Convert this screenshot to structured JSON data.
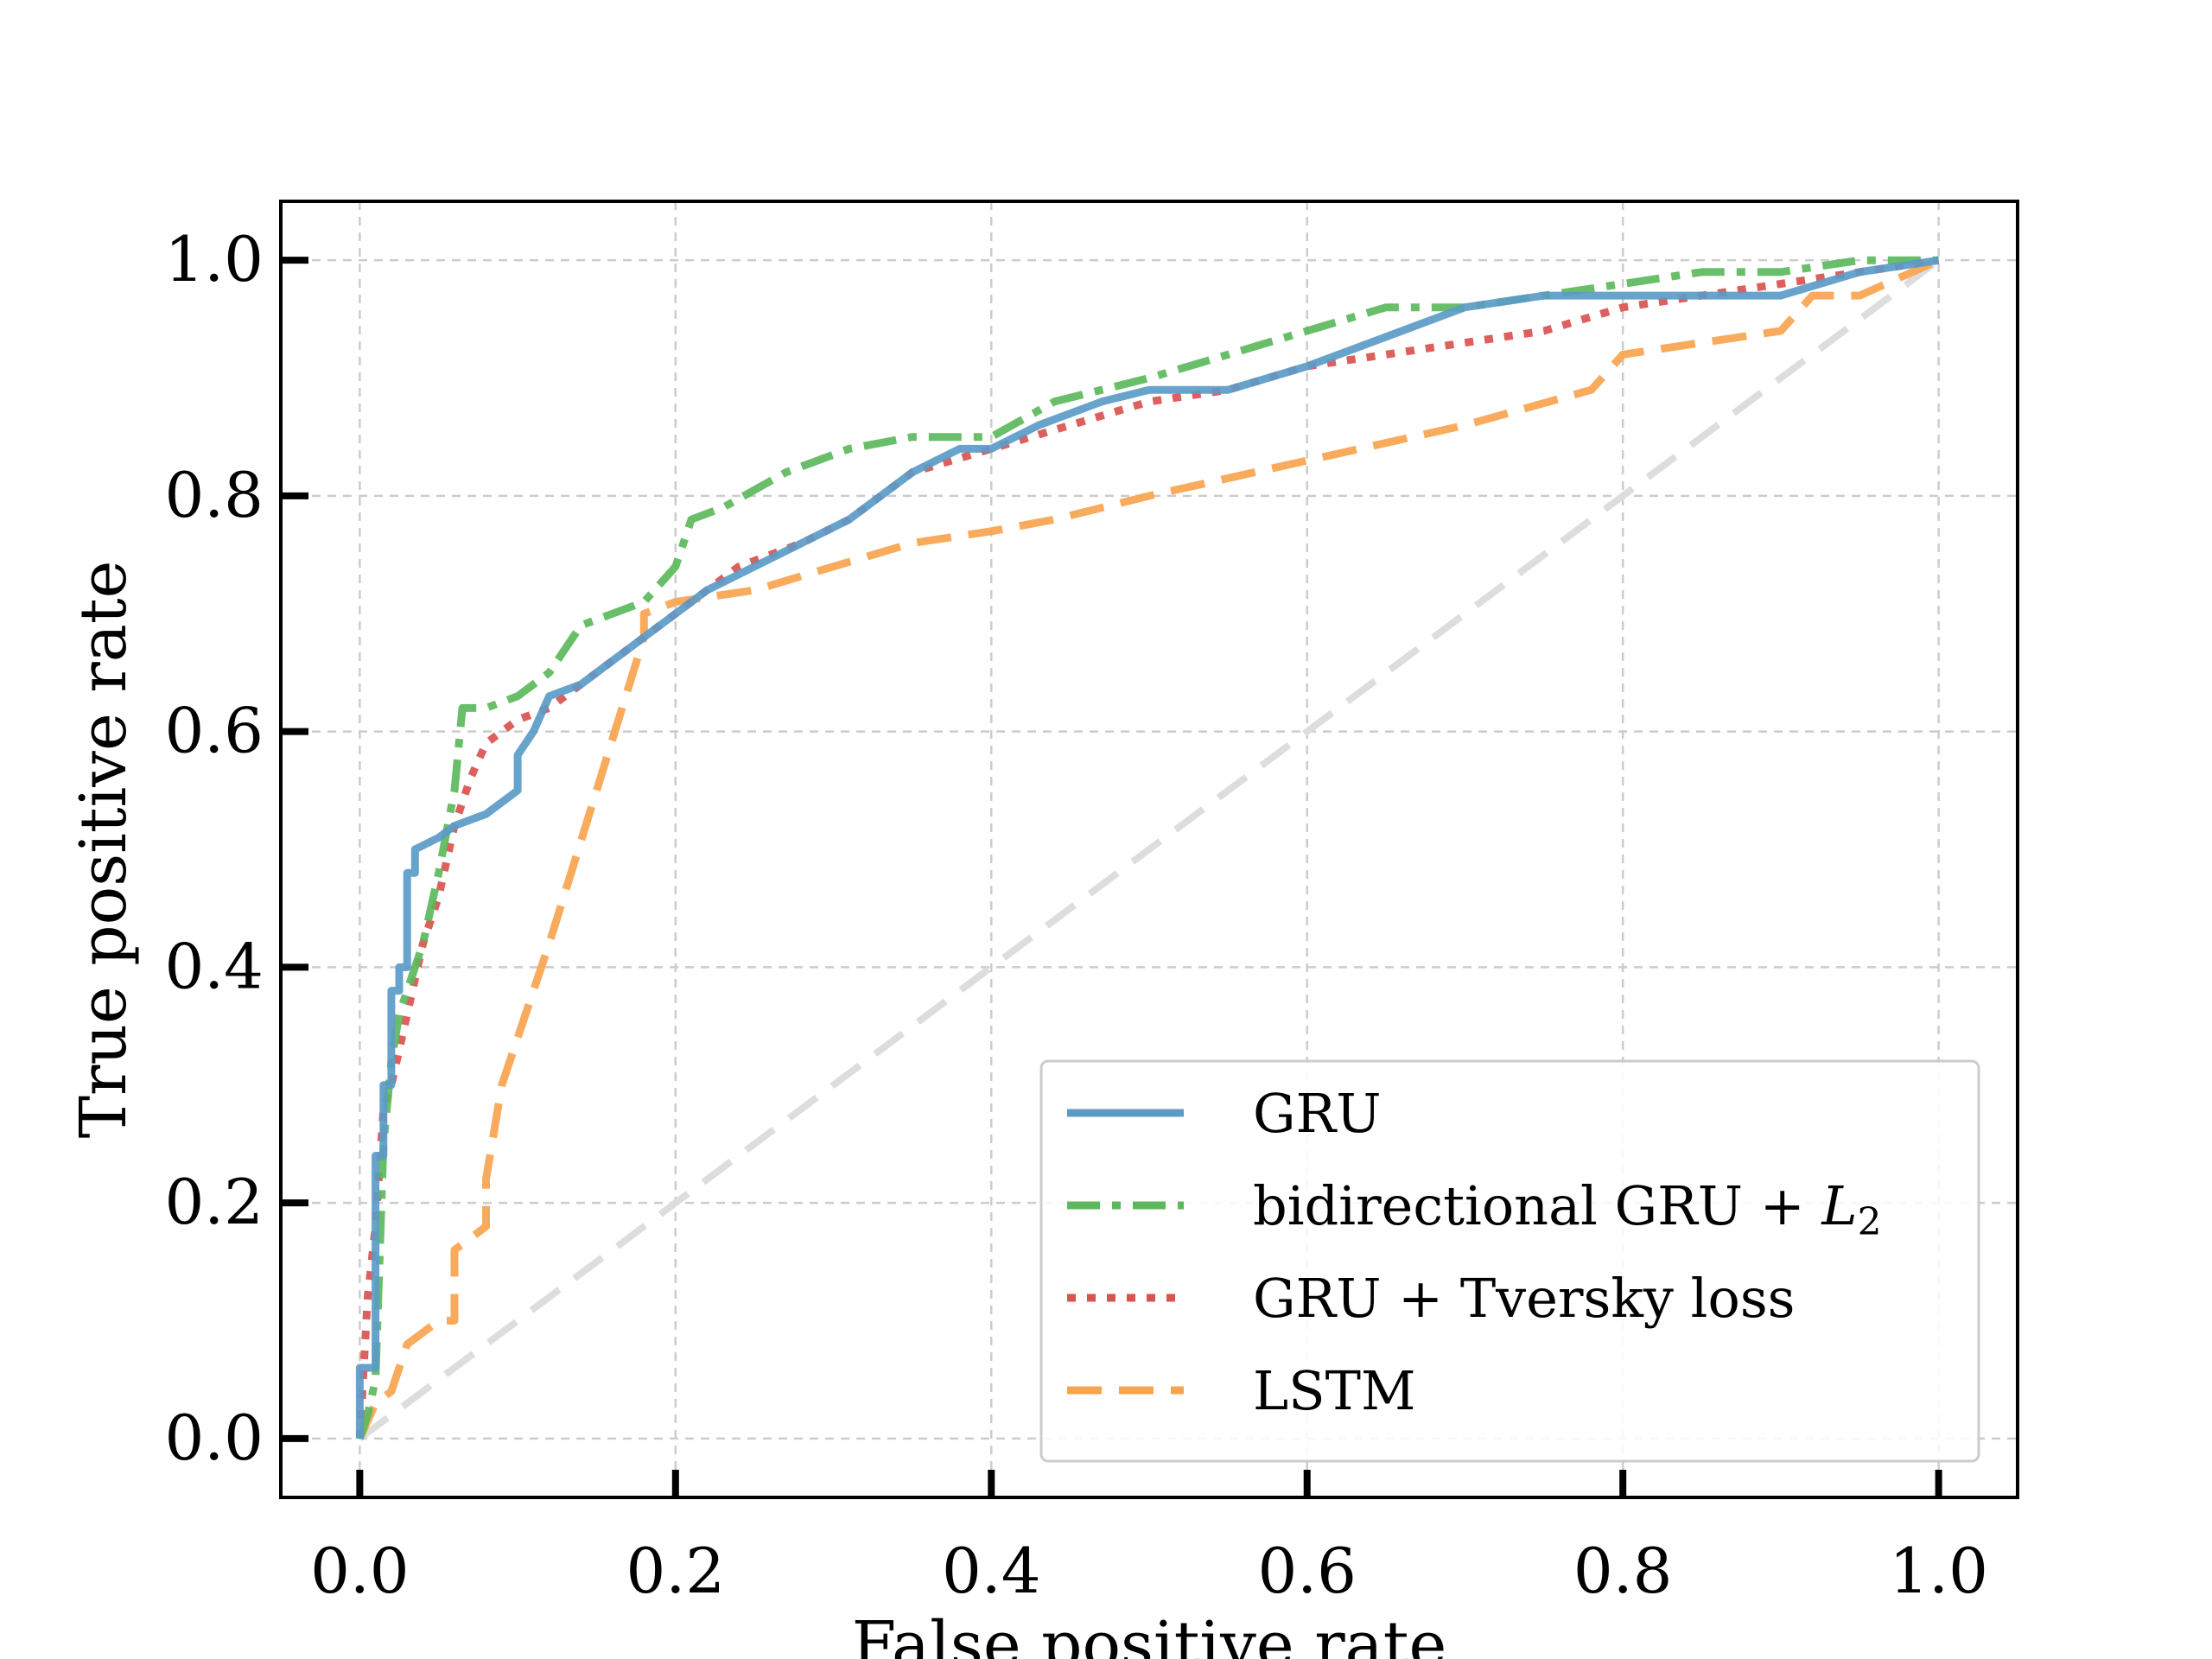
{
  "chart_data": {
    "type": "line",
    "title": "",
    "xlabel": "False positive rate",
    "ylabel": "True positive rate",
    "xlim": [
      -0.05,
      1.05
    ],
    "ylim": [
      -0.05,
      1.05
    ],
    "xticks": [
      "0.0",
      "0.2",
      "0.4",
      "0.6",
      "0.8",
      "1.0"
    ],
    "yticks": [
      "0.0",
      "0.2",
      "0.4",
      "0.6",
      "0.8",
      "1.0"
    ],
    "grid": true,
    "legend_position": "lower-right",
    "reference_line": {
      "x": [
        0,
        1
      ],
      "y": [
        0,
        1
      ],
      "color": "#dddddd",
      "style": "dashed"
    },
    "series": [
      {
        "name": "GRU",
        "color": "#5b9bc8",
        "style": "solid",
        "x": [
          0,
          0,
          0.01,
          0.01,
          0.015,
          0.015,
          0.02,
          0.02,
          0.025,
          0.025,
          0.03,
          0.03,
          0.035,
          0.035,
          0.05,
          0.06,
          0.08,
          0.09,
          0.1,
          0.1,
          0.11,
          0.12,
          0.14,
          0.16,
          0.18,
          0.2,
          0.22,
          0.25,
          0.28,
          0.31,
          0.33,
          0.35,
          0.38,
          0.4,
          0.43,
          0.47,
          0.5,
          0.55,
          0.6,
          0.66,
          0.7,
          0.75,
          0.8,
          0.9,
          0.95,
          1.0
        ],
        "y": [
          0,
          0.06,
          0.06,
          0.24,
          0.24,
          0.3,
          0.3,
          0.38,
          0.38,
          0.4,
          0.4,
          0.48,
          0.48,
          0.5,
          0.51,
          0.52,
          0.53,
          0.54,
          0.55,
          0.58,
          0.6,
          0.63,
          0.64,
          0.66,
          0.68,
          0.7,
          0.72,
          0.74,
          0.76,
          0.78,
          0.8,
          0.82,
          0.84,
          0.84,
          0.86,
          0.88,
          0.89,
          0.89,
          0.91,
          0.94,
          0.96,
          0.97,
          0.97,
          0.97,
          0.99,
          1.0
        ]
      },
      {
        "name": "bidirectional GRU + L2",
        "color": "#5cb85c",
        "style": "dashdot",
        "x": [
          0,
          0.005,
          0.01,
          0.015,
          0.02,
          0.025,
          0.03,
          0.04,
          0.05,
          0.06,
          0.065,
          0.07,
          0.08,
          0.1,
          0.12,
          0.14,
          0.16,
          0.18,
          0.2,
          0.21,
          0.23,
          0.27,
          0.31,
          0.35,
          0.4,
          0.44,
          0.5,
          0.55,
          0.6,
          0.65,
          0.7,
          0.75,
          0.8,
          0.85,
          0.9,
          0.95,
          1.0
        ],
        "y": [
          0,
          0.02,
          0.05,
          0.25,
          0.32,
          0.36,
          0.38,
          0.42,
          0.48,
          0.55,
          0.62,
          0.62,
          0.62,
          0.63,
          0.65,
          0.69,
          0.7,
          0.71,
          0.74,
          0.78,
          0.79,
          0.82,
          0.84,
          0.85,
          0.85,
          0.88,
          0.9,
          0.92,
          0.94,
          0.96,
          0.96,
          0.97,
          0.98,
          0.99,
          0.99,
          1.0,
          1.0
        ]
      },
      {
        "name": "GRU + Tversky loss",
        "color": "#d9534f",
        "style": "dotted",
        "x": [
          0,
          0.005,
          0.01,
          0.015,
          0.02,
          0.03,
          0.04,
          0.05,
          0.06,
          0.07,
          0.08,
          0.1,
          0.12,
          0.14,
          0.16,
          0.18,
          0.2,
          0.24,
          0.28,
          0.31,
          0.35,
          0.4,
          0.45,
          0.5,
          0.55,
          0.6,
          0.65,
          0.7,
          0.75,
          0.8,
          0.85,
          0.9,
          0.95,
          1.0
        ],
        "y": [
          0,
          0.12,
          0.18,
          0.28,
          0.3,
          0.36,
          0.42,
          0.46,
          0.52,
          0.56,
          0.59,
          0.61,
          0.62,
          0.64,
          0.66,
          0.68,
          0.7,
          0.74,
          0.76,
          0.78,
          0.82,
          0.84,
          0.86,
          0.88,
          0.89,
          0.91,
          0.92,
          0.93,
          0.94,
          0.96,
          0.97,
          0.98,
          0.99,
          1.0
        ]
      },
      {
        "name": "LSTM",
        "color": "#f8a44f",
        "style": "dashed",
        "x": [
          0,
          0.01,
          0.02,
          0.03,
          0.04,
          0.05,
          0.06,
          0.06,
          0.07,
          0.08,
          0.08,
          0.09,
          0.12,
          0.15,
          0.18,
          0.18,
          0.2,
          0.25,
          0.3,
          0.35,
          0.4,
          0.44,
          0.5,
          0.6,
          0.7,
          0.78,
          0.8,
          0.85,
          0.9,
          0.92,
          0.95,
          1.0
        ],
        "y": [
          0,
          0.03,
          0.04,
          0.08,
          0.09,
          0.1,
          0.1,
          0.16,
          0.17,
          0.18,
          0.22,
          0.3,
          0.42,
          0.55,
          0.68,
          0.7,
          0.71,
          0.72,
          0.74,
          0.76,
          0.77,
          0.78,
          0.8,
          0.83,
          0.86,
          0.89,
          0.92,
          0.93,
          0.94,
          0.97,
          0.97,
          1.0
        ]
      }
    ]
  },
  "legend": {
    "items": [
      {
        "label": "GRU"
      },
      {
        "label": "bidirectional GRU + "
      },
      {
        "label": "GRU + Tversky loss"
      },
      {
        "label": "LSTM"
      }
    ],
    "l2_base": "L",
    "l2_sub": "2"
  }
}
